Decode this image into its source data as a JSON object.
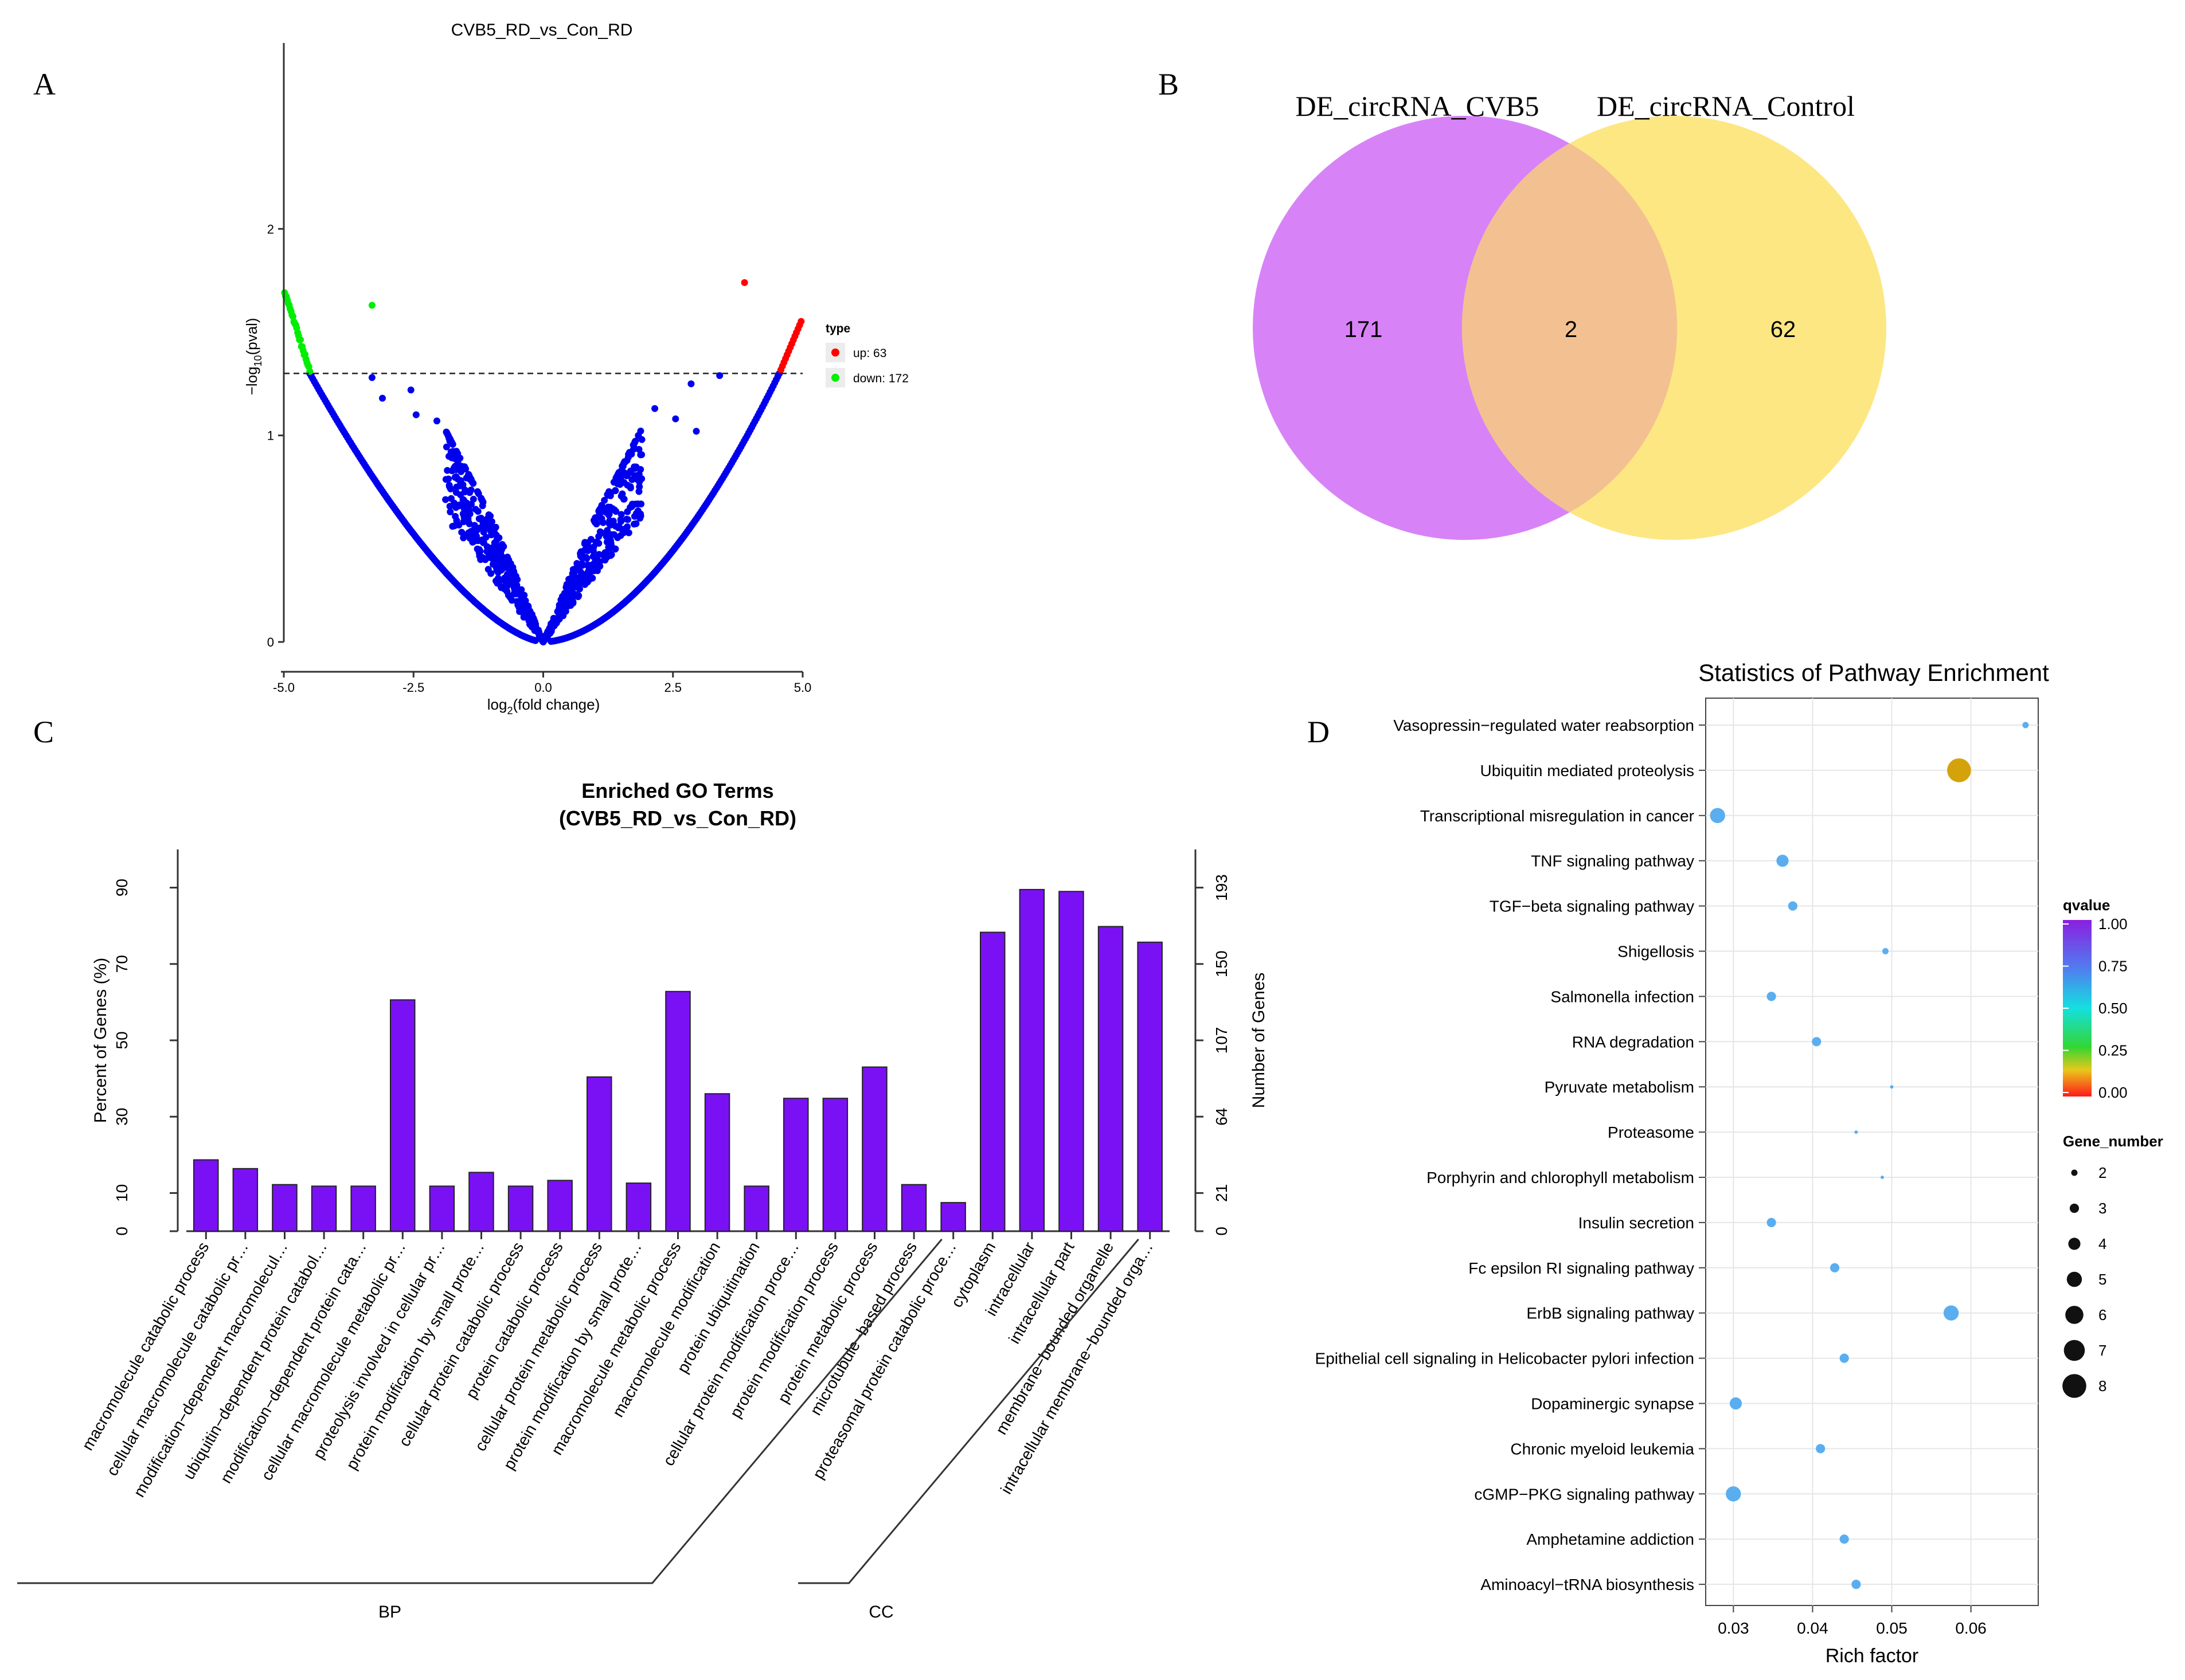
{
  "colors": {
    "up": "#ff0000",
    "down": "#00ee00",
    "ns": "#0000ee",
    "bar": "#7a11f5",
    "venn_left": "#d783f7",
    "venn_right": "#fde783",
    "venn_overlap": "#f3c191",
    "point_blue": "#5aaef0",
    "point_gold": "#d4a30c",
    "grid": "#e6e6e6"
  },
  "panel_labels": {
    "a": "A",
    "b": "B",
    "c": "C",
    "d": "D"
  },
  "chart_data": [
    {
      "id": "volcano",
      "type": "scatter",
      "title": "CVB5_RD_vs_Con_RD",
      "xlabel_main": "log",
      "xlabel_sub": "2",
      "xlabel_rest": "(fold change)",
      "ylabel_main": "−log",
      "ylabel_sub": "10",
      "ylabel_rest": "(pval)",
      "xlim": [
        -5,
        5
      ],
      "ylim": [
        0,
        2.9
      ],
      "x_ticks": [
        -5,
        -2.5,
        0,
        2.5,
        5
      ],
      "x_tick_labels": [
        "-5.0",
        "-2.5",
        "0.0",
        "2.5",
        "5.0"
      ],
      "y_ticks": [
        0,
        1,
        2
      ],
      "y_tick_labels": [
        "0",
        "1",
        "2"
      ],
      "threshold": 1.3,
      "legend_title": "type",
      "legend": [
        {
          "key": "up",
          "label": "up: 63"
        },
        {
          "key": "down",
          "label": "down: 172"
        }
      ],
      "outlier_points": [
        {
          "x": 3.88,
          "y": 1.74,
          "type": "up"
        },
        {
          "x": -3.3,
          "y": 1.63,
          "type": "down"
        },
        {
          "x": -3.3,
          "y": 1.28,
          "type": "ns"
        },
        {
          "x": -3.1,
          "y": 1.18,
          "type": "ns"
        },
        {
          "x": -2.55,
          "y": 1.22,
          "type": "ns"
        },
        {
          "x": -2.45,
          "y": 1.1,
          "type": "ns"
        },
        {
          "x": -2.05,
          "y": 1.07,
          "type": "ns"
        },
        {
          "x": 3.4,
          "y": 1.29,
          "type": "ns"
        },
        {
          "x": 2.85,
          "y": 1.25,
          "type": "ns"
        },
        {
          "x": 2.15,
          "y": 1.13,
          "type": "ns"
        },
        {
          "x": 2.55,
          "y": 1.08,
          "type": "ns"
        },
        {
          "x": 2.95,
          "y": 1.02,
          "type": "ns"
        },
        {
          "x": 1.9,
          "y": 0.98,
          "type": "ns"
        }
      ]
    },
    {
      "id": "venn",
      "type": "venn",
      "sets": [
        {
          "name": "DE_circRNA_CVB5",
          "only": 171
        },
        {
          "name": "DE_circRNA_Control",
          "only": 62
        }
      ],
      "overlap": 2
    },
    {
      "id": "go_bar",
      "type": "bar",
      "title_line1": "Enriched GO Terms",
      "title_line2": "(CVB5_RD_vs_Con_RD)",
      "ylabel_left": "Percent of Genes (%)",
      "ylabel_right": "Number of Genes",
      "ylim": [
        0,
        100
      ],
      "y_ticks": [
        0,
        10,
        30,
        50,
        70,
        90
      ],
      "right_tick_values": [
        0,
        21,
        64,
        107,
        150,
        193
      ],
      "right_tick_labels": [
        "0",
        "21",
        "64",
        "107",
        "150",
        "193"
      ],
      "categories": [
        "macromolecule catabolic process",
        "cellular macromolecule catabolic pr…",
        "modification−dependent macromolecul…",
        "ubiquitin−dependent protein catabol…",
        "modification−dependent protein cata…",
        "cellular macromolecule metabolic pr…",
        "proteolysis involved in cellular pr…",
        "protein modification by small prote…",
        "cellular protein catabolic process",
        "protein catabolic process",
        "cellular protein metabolic process",
        "protein modification by small prote…",
        "macromolecule metabolic process",
        "macromolecule modification",
        "protein ubiquitination",
        "cellular protein modification proce…",
        "protein modification process",
        "protein metabolic process",
        "microtubule−based process",
        "proteasomal protein catabolic proce…",
        "cytoplasm",
        "intracellular",
        "intracellular part",
        "membrane−bounded organelle",
        "intracellular membrane−bounded orga…"
      ],
      "values": [
        18.7,
        16.4,
        12.2,
        11.8,
        11.8,
        60.6,
        11.8,
        15.4,
        11.8,
        13.3,
        40.4,
        12.6,
        62.8,
        36.0,
        11.8,
        34.8,
        34.8,
        43.0,
        12.2,
        7.5,
        78.3,
        89.5,
        89.0,
        79.8,
        75.7
      ],
      "groups": [
        {
          "label": "BP",
          "start": 0,
          "end": 19
        },
        {
          "label": "CC",
          "start": 20,
          "end": 24
        }
      ]
    },
    {
      "id": "kegg_bubble",
      "type": "scatter",
      "title": "Statistics of Pathway Enrichment",
      "xlabel": "Rich factor",
      "xlim": [
        0.0265,
        0.0685
      ],
      "x_ticks": [
        0.03,
        0.04,
        0.05,
        0.06
      ],
      "x_tick_labels": [
        "0.03",
        "0.04",
        "0.05",
        "0.06"
      ],
      "pathways": [
        {
          "name": "Vasopressin−regulated water reabsorption",
          "rich": 0.0669,
          "gene_number": 2
        },
        {
          "name": "Ubiquitin mediated proteolysis",
          "rich": 0.0585,
          "gene_number": 8
        },
        {
          "name": "Transcriptional misregulation in cancer",
          "rich": 0.028,
          "gene_number": 5
        },
        {
          "name": "TNF signaling pathway",
          "rich": 0.0362,
          "gene_number": 4
        },
        {
          "name": "TGF−beta signaling pathway",
          "rich": 0.0375,
          "gene_number": 3
        },
        {
          "name": "Shigellosis",
          "rich": 0.0492,
          "gene_number": 2
        },
        {
          "name": "Salmonella infection",
          "rich": 0.0348,
          "gene_number": 3
        },
        {
          "name": "RNA degradation",
          "rich": 0.0405,
          "gene_number": 3
        },
        {
          "name": "Pyruvate metabolism",
          "rich": 0.05,
          "gene_number": 1
        },
        {
          "name": "Proteasome",
          "rich": 0.0455,
          "gene_number": 1
        },
        {
          "name": "Porphyrin and chlorophyll metabolism",
          "rich": 0.0488,
          "gene_number": 1
        },
        {
          "name": "Insulin secretion",
          "rich": 0.0348,
          "gene_number": 3
        },
        {
          "name": "Fc epsilon RI signaling pathway",
          "rich": 0.0428,
          "gene_number": 3
        },
        {
          "name": "ErbB signaling pathway",
          "rich": 0.0575,
          "gene_number": 5
        },
        {
          "name": "Epithelial cell signaling in Helicobacter pylori infection",
          "rich": 0.044,
          "gene_number": 3
        },
        {
          "name": "Dopaminergic synapse",
          "rich": 0.0303,
          "gene_number": 4
        },
        {
          "name": "Chronic myeloid leukemia",
          "rich": 0.041,
          "gene_number": 3
        },
        {
          "name": "cGMP−PKG signaling pathway",
          "rich": 0.03,
          "gene_number": 5
        },
        {
          "name": "Amphetamine addiction",
          "rich": 0.044,
          "gene_number": 3
        },
        {
          "name": "Aminoacyl−tRNA biosynthesis",
          "rich": 0.0455,
          "gene_number": 3
        }
      ],
      "qvalue_legend_title": "qvalue",
      "qvalue_ticks": [
        "1.00",
        "0.75",
        "0.50",
        "0.25",
        "0.00"
      ],
      "gene_number_legend_title": "Gene_number",
      "gene_number_levels": [
        2,
        3,
        4,
        5,
        6,
        7,
        8
      ]
    }
  ]
}
